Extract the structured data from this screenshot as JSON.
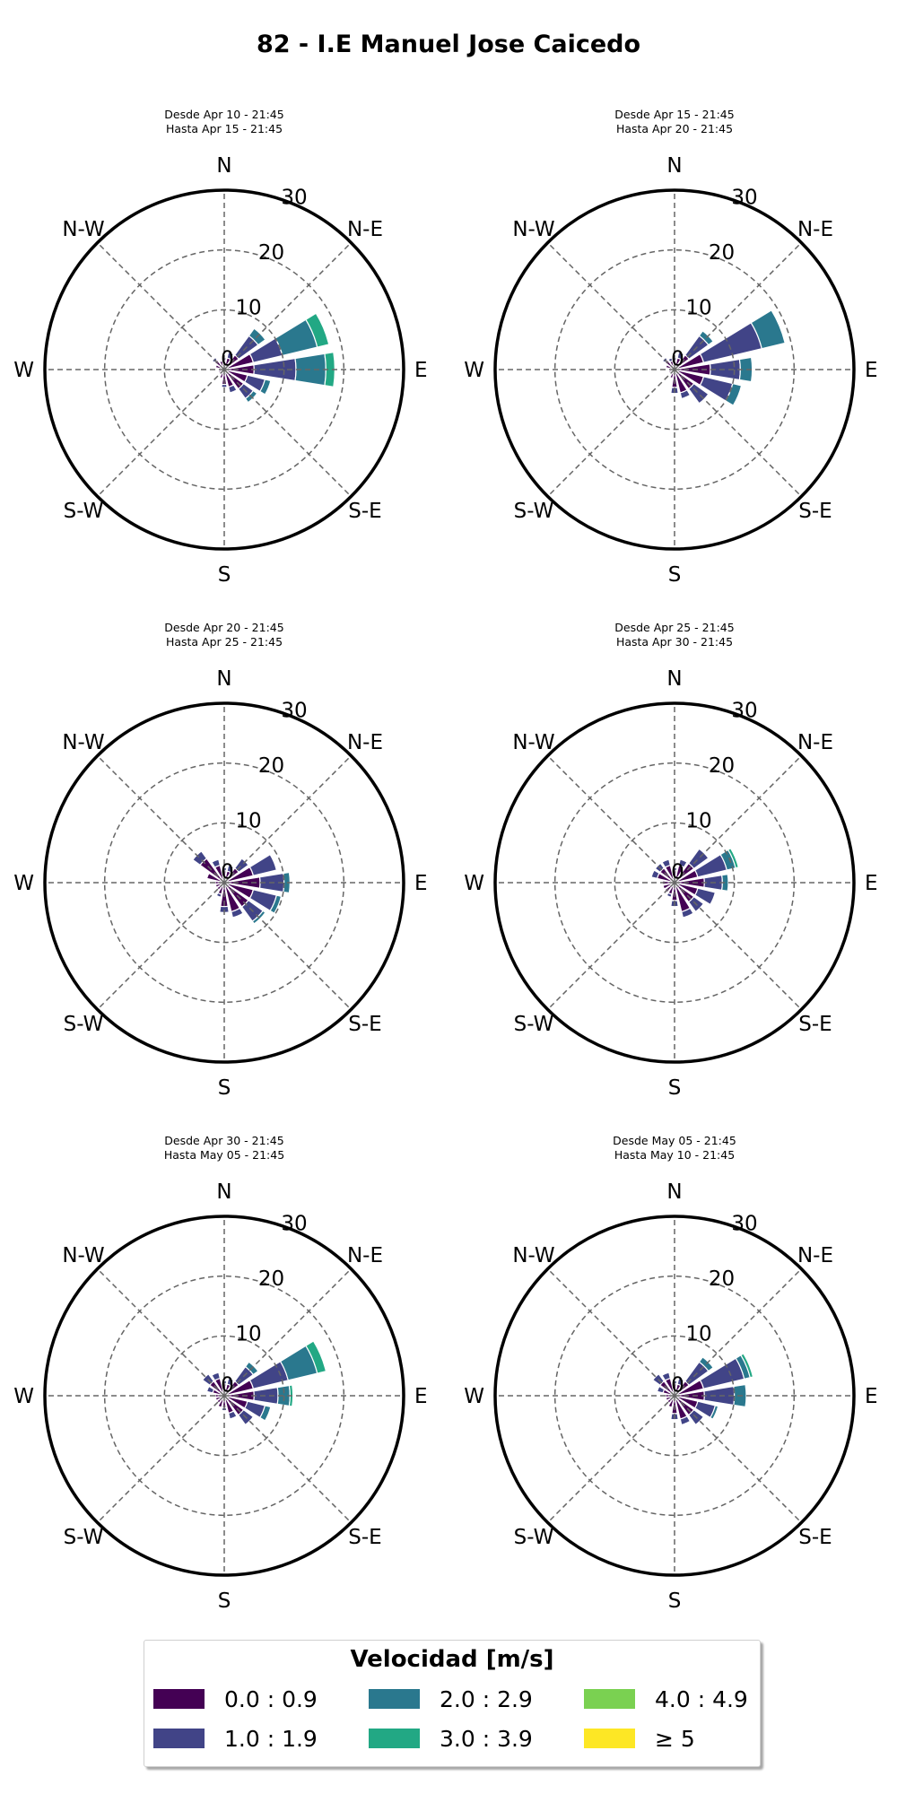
{
  "title": "82 - I.E Manuel Jose Caicedo",
  "legend": {
    "title": "Velocidad [m/s]",
    "bins": [
      {
        "label": "0.0 : 0.9",
        "color": "#440154"
      },
      {
        "label": "1.0 : 1.9",
        "color": "#414487"
      },
      {
        "label": "2.0 : 2.9",
        "color": "#2a788e"
      },
      {
        "label": "3.0 : 3.9",
        "color": "#22a884"
      },
      {
        "label": "4.0 : 4.9",
        "color": "#7ad151"
      },
      {
        "label": "≥  5",
        "color": "#fde725"
      }
    ]
  },
  "axis": {
    "directions": [
      "N",
      "N-E",
      "E",
      "S-E",
      "S",
      "S-W",
      "W",
      "N-W"
    ],
    "radial_ticks": [
      "0",
      "10",
      "20",
      "30"
    ],
    "rmax": 30
  },
  "chart_data": [
    {
      "type": "windrose",
      "subtitle": [
        "Desde Apr 10 - 21:45",
        "Hasta Apr 15 - 21:45"
      ],
      "series": [
        {
          "direction_deg": 0,
          "stack": [
            1.5,
            0.5
          ]
        },
        {
          "direction_deg": 22.5,
          "stack": [
            2,
            1
          ]
        },
        {
          "direction_deg": 45,
          "stack": [
            3,
            4,
            1.5
          ]
        },
        {
          "direction_deg": 67.5,
          "stack": [
            5,
            5,
            6,
            2
          ]
        },
        {
          "direction_deg": 90,
          "stack": [
            5,
            7,
            5,
            1.5
          ]
        },
        {
          "direction_deg": 112.5,
          "stack": [
            4,
            3,
            1
          ]
        },
        {
          "direction_deg": 135,
          "stack": [
            4,
            2,
            0.8
          ]
        },
        {
          "direction_deg": 157.5,
          "stack": [
            3,
            1
          ]
        },
        {
          "direction_deg": 180,
          "stack": [
            2.5,
            0.5
          ]
        },
        {
          "direction_deg": 202.5,
          "stack": [
            1.5
          ]
        },
        {
          "direction_deg": 225,
          "stack": [
            1
          ]
        },
        {
          "direction_deg": 247.5,
          "stack": [
            1
          ]
        },
        {
          "direction_deg": 270,
          "stack": [
            1
          ]
        },
        {
          "direction_deg": 292.5,
          "stack": [
            1.5
          ]
        },
        {
          "direction_deg": 315,
          "stack": [
            2,
            0.5
          ]
        },
        {
          "direction_deg": 337.5,
          "stack": [
            1.5
          ]
        }
      ]
    },
    {
      "type": "windrose",
      "subtitle": [
        "Desde Apr 15 - 21:45",
        "Hasta Apr 20 - 21:45"
      ],
      "series": [
        {
          "direction_deg": 0,
          "stack": [
            1.5,
            0.5
          ]
        },
        {
          "direction_deg": 22.5,
          "stack": [
            2,
            1
          ]
        },
        {
          "direction_deg": 45,
          "stack": [
            3,
            4,
            1
          ]
        },
        {
          "direction_deg": 67.5,
          "stack": [
            5,
            10,
            4
          ]
        },
        {
          "direction_deg": 90,
          "stack": [
            6,
            5,
            2
          ]
        },
        {
          "direction_deg": 112.5,
          "stack": [
            5,
            5,
            1.5
          ]
        },
        {
          "direction_deg": 135,
          "stack": [
            4,
            3
          ]
        },
        {
          "direction_deg": 157.5,
          "stack": [
            4,
            1
          ]
        },
        {
          "direction_deg": 180,
          "stack": [
            3,
            1
          ]
        },
        {
          "direction_deg": 202.5,
          "stack": [
            1.5
          ]
        },
        {
          "direction_deg": 225,
          "stack": [
            1
          ]
        },
        {
          "direction_deg": 247.5,
          "stack": [
            1
          ]
        },
        {
          "direction_deg": 270,
          "stack": [
            1
          ]
        },
        {
          "direction_deg": 292.5,
          "stack": [
            1.5
          ]
        },
        {
          "direction_deg": 315,
          "stack": [
            2,
            0.5
          ]
        },
        {
          "direction_deg": 337.5,
          "stack": [
            1.5,
            0.5
          ]
        }
      ]
    },
    {
      "type": "windrose",
      "subtitle": [
        "Desde Apr 20 - 21:45",
        "Hasta Apr 25 - 21:45"
      ],
      "series": [
        {
          "direction_deg": 0,
          "stack": [
            2,
            0.5
          ]
        },
        {
          "direction_deg": 22.5,
          "stack": [
            2,
            1
          ]
        },
        {
          "direction_deg": 45,
          "stack": [
            3,
            2
          ]
        },
        {
          "direction_deg": 67.5,
          "stack": [
            5,
            4
          ]
        },
        {
          "direction_deg": 90,
          "stack": [
            6,
            4,
            1
          ]
        },
        {
          "direction_deg": 112.5,
          "stack": [
            5,
            4,
            0.8
          ]
        },
        {
          "direction_deg": 135,
          "stack": [
            5,
            3,
            0.5
          ]
        },
        {
          "direction_deg": 157.5,
          "stack": [
            5,
            1
          ]
        },
        {
          "direction_deg": 180,
          "stack": [
            4,
            1
          ]
        },
        {
          "direction_deg": 202.5,
          "stack": [
            2,
            0.5
          ]
        },
        {
          "direction_deg": 225,
          "stack": [
            1.5
          ]
        },
        {
          "direction_deg": 247.5,
          "stack": [
            1.5
          ]
        },
        {
          "direction_deg": 270,
          "stack": [
            1.5
          ]
        },
        {
          "direction_deg": 292.5,
          "stack": [
            3
          ]
        },
        {
          "direction_deg": 315,
          "stack": [
            5,
            1.5
          ]
        },
        {
          "direction_deg": 337.5,
          "stack": [
            3,
            1
          ]
        }
      ]
    },
    {
      "type": "windrose",
      "subtitle": [
        "Desde Apr 25 - 21:45",
        "Hasta Apr 30 - 21:45"
      ],
      "series": [
        {
          "direction_deg": 0,
          "stack": [
            2,
            0.5
          ]
        },
        {
          "direction_deg": 22.5,
          "stack": [
            3,
            1
          ]
        },
        {
          "direction_deg": 45,
          "stack": [
            4,
            3
          ]
        },
        {
          "direction_deg": 67.5,
          "stack": [
            4,
            5,
            1.5,
            0.5
          ]
        },
        {
          "direction_deg": 90,
          "stack": [
            5,
            3,
            1
          ]
        },
        {
          "direction_deg": 112.5,
          "stack": [
            4,
            3
          ]
        },
        {
          "direction_deg": 135,
          "stack": [
            4,
            2
          ]
        },
        {
          "direction_deg": 157.5,
          "stack": [
            5,
            1
          ]
        },
        {
          "direction_deg": 180,
          "stack": [
            3,
            1
          ]
        },
        {
          "direction_deg": 202.5,
          "stack": [
            2,
            0.5
          ]
        },
        {
          "direction_deg": 225,
          "stack": [
            2
          ]
        },
        {
          "direction_deg": 247.5,
          "stack": [
            2
          ]
        },
        {
          "direction_deg": 270,
          "stack": [
            2
          ]
        },
        {
          "direction_deg": 292.5,
          "stack": [
            3,
            1
          ]
        },
        {
          "direction_deg": 315,
          "stack": [
            3,
            1
          ]
        },
        {
          "direction_deg": 337.5,
          "stack": [
            3,
            1
          ]
        }
      ]
    },
    {
      "type": "windrose",
      "subtitle": [
        "Desde Apr 30 - 21:45",
        "Hasta May 05 - 21:45"
      ],
      "series": [
        {
          "direction_deg": 0,
          "stack": [
            2,
            0.5
          ]
        },
        {
          "direction_deg": 22.5,
          "stack": [
            2,
            1
          ]
        },
        {
          "direction_deg": 45,
          "stack": [
            3,
            3,
            1
          ]
        },
        {
          "direction_deg": 67.5,
          "stack": [
            5,
            6,
            5,
            1.5
          ]
        },
        {
          "direction_deg": 90,
          "stack": [
            5,
            4,
            2,
            0.5
          ]
        },
        {
          "direction_deg": 112.5,
          "stack": [
            4,
            3,
            1
          ]
        },
        {
          "direction_deg": 135,
          "stack": [
            4,
            2
          ]
        },
        {
          "direction_deg": 157.5,
          "stack": [
            3,
            1
          ]
        },
        {
          "direction_deg": 180,
          "stack": [
            2,
            0.5
          ]
        },
        {
          "direction_deg": 202.5,
          "stack": [
            2
          ]
        },
        {
          "direction_deg": 225,
          "stack": [
            1.5
          ]
        },
        {
          "direction_deg": 247.5,
          "stack": [
            1.5
          ]
        },
        {
          "direction_deg": 270,
          "stack": [
            1.5
          ]
        },
        {
          "direction_deg": 292.5,
          "stack": [
            2,
            1
          ]
        },
        {
          "direction_deg": 315,
          "stack": [
            3,
            1.5
          ]
        },
        {
          "direction_deg": 337.5,
          "stack": [
            3,
            1
          ]
        }
      ]
    },
    {
      "type": "windrose",
      "subtitle": [
        "Desde May 05 - 21:45",
        "Hasta May 10 - 21:45"
      ],
      "series": [
        {
          "direction_deg": 0,
          "stack": [
            2,
            0.5
          ]
        },
        {
          "direction_deg": 22.5,
          "stack": [
            2,
            1
          ]
        },
        {
          "direction_deg": 45,
          "stack": [
            3,
            4,
            1
          ]
        },
        {
          "direction_deg": 67.5,
          "stack": [
            5,
            7,
            1,
            0.5
          ]
        },
        {
          "direction_deg": 90,
          "stack": [
            5,
            5,
            2
          ]
        },
        {
          "direction_deg": 112.5,
          "stack": [
            4,
            3,
            0.5
          ]
        },
        {
          "direction_deg": 135,
          "stack": [
            4,
            2
          ]
        },
        {
          "direction_deg": 157.5,
          "stack": [
            4,
            1
          ]
        },
        {
          "direction_deg": 180,
          "stack": [
            3,
            1
          ]
        },
        {
          "direction_deg": 202.5,
          "stack": [
            2
          ]
        },
        {
          "direction_deg": 225,
          "stack": [
            1.5
          ]
        },
        {
          "direction_deg": 247.5,
          "stack": [
            1.5
          ]
        },
        {
          "direction_deg": 270,
          "stack": [
            1.5
          ]
        },
        {
          "direction_deg": 292.5,
          "stack": [
            2,
            1
          ]
        },
        {
          "direction_deg": 315,
          "stack": [
            3,
            1.5
          ]
        },
        {
          "direction_deg": 337.5,
          "stack": [
            3,
            1
          ]
        }
      ]
    }
  ]
}
